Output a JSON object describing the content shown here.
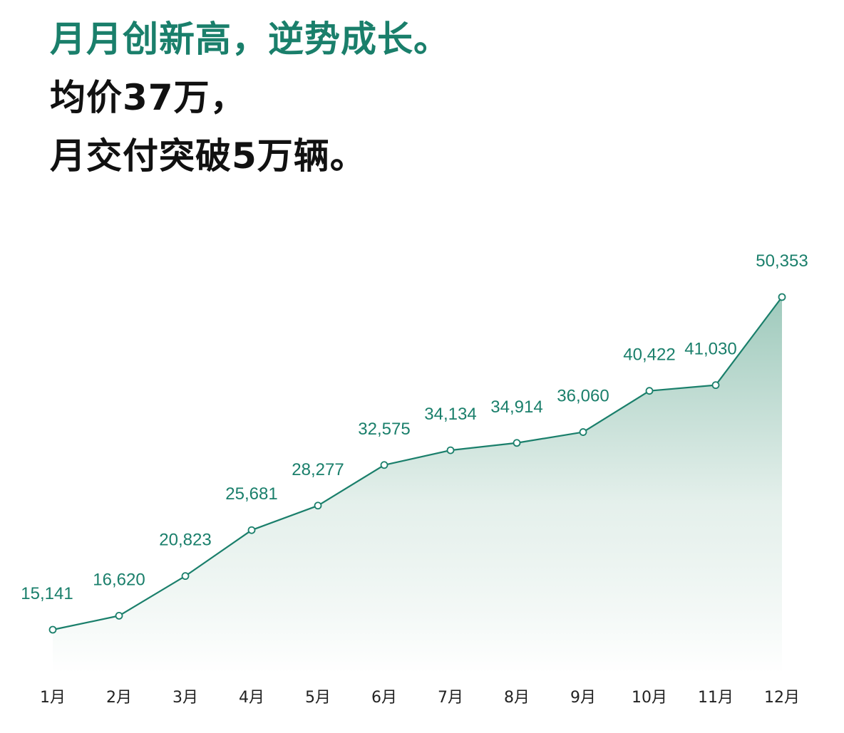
{
  "headline": {
    "line1": "月月创新高，逆势成长。",
    "line2": "均价37万，",
    "line3": "月交付突破5万辆。"
  },
  "colors": {
    "accent": "#1a7f6b",
    "text": "#111111",
    "area_top": "#7fb8a6",
    "point_fill": "#ffffff"
  },
  "chart_data": {
    "type": "area",
    "categories": [
      "1月",
      "2月",
      "3月",
      "4月",
      "5月",
      "6月",
      "7月",
      "8月",
      "9月",
      "10月",
      "11月",
      "12月"
    ],
    "values": [
      15141,
      16620,
      20823,
      25681,
      28277,
      32575,
      34134,
      34914,
      36060,
      40422,
      41030,
      50353
    ],
    "value_labels": [
      "15,141",
      "16,620",
      "20,823",
      "25,681",
      "28,277",
      "32,575",
      "34,134",
      "34,914",
      "36,060",
      "40,422",
      "41,030",
      "50,353"
    ],
    "title": "",
    "xlabel": "",
    "ylabel": "",
    "grid": false,
    "legend": "none"
  }
}
